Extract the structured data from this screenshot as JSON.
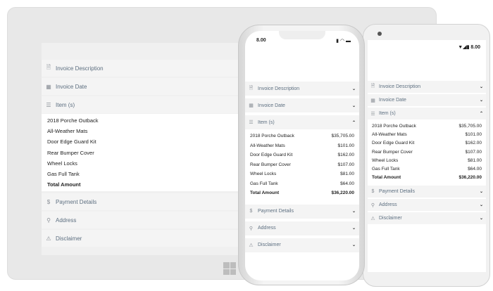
{
  "status_time": "8.00",
  "sections_top": [
    {
      "label": "Invoice Description",
      "icon": "document-icon",
      "glyph": "🗎",
      "state": "collapsed"
    },
    {
      "label": "Invoice Date",
      "icon": "calendar-icon",
      "glyph": "▦",
      "state": "collapsed"
    },
    {
      "label": "Item (s)",
      "icon": "list-icon",
      "glyph": "☰",
      "state": "expanded"
    }
  ],
  "items": [
    {
      "name": "2018 Porche Outback",
      "price": "$35,705.00"
    },
    {
      "name": "All-Weather Mats",
      "price": "$101.00"
    },
    {
      "name": "Door Edge Guard Kit",
      "price": "$162.00"
    },
    {
      "name": "Rear Bumper Cover",
      "price": "$107.00"
    },
    {
      "name": "Wheel Locks",
      "price": "$81.00"
    },
    {
      "name": "Gas Full Tank",
      "price": "$64.00"
    }
  ],
  "total": {
    "name": "Total Amount",
    "price": "$36,220.00"
  },
  "sections_bottom": [
    {
      "label": "Payment Details",
      "icon": "dollar-icon",
      "glyph": "$",
      "state": "collapsed"
    },
    {
      "label": "Address",
      "icon": "location-pin-icon",
      "glyph": "⚲",
      "state": "collapsed"
    },
    {
      "label": "Disclaimer",
      "icon": "warning-icon",
      "glyph": "⚠",
      "state": "collapsed"
    }
  ],
  "colors": {
    "header_bg": "#f4f4f4",
    "header_text": "#5d6f80"
  }
}
